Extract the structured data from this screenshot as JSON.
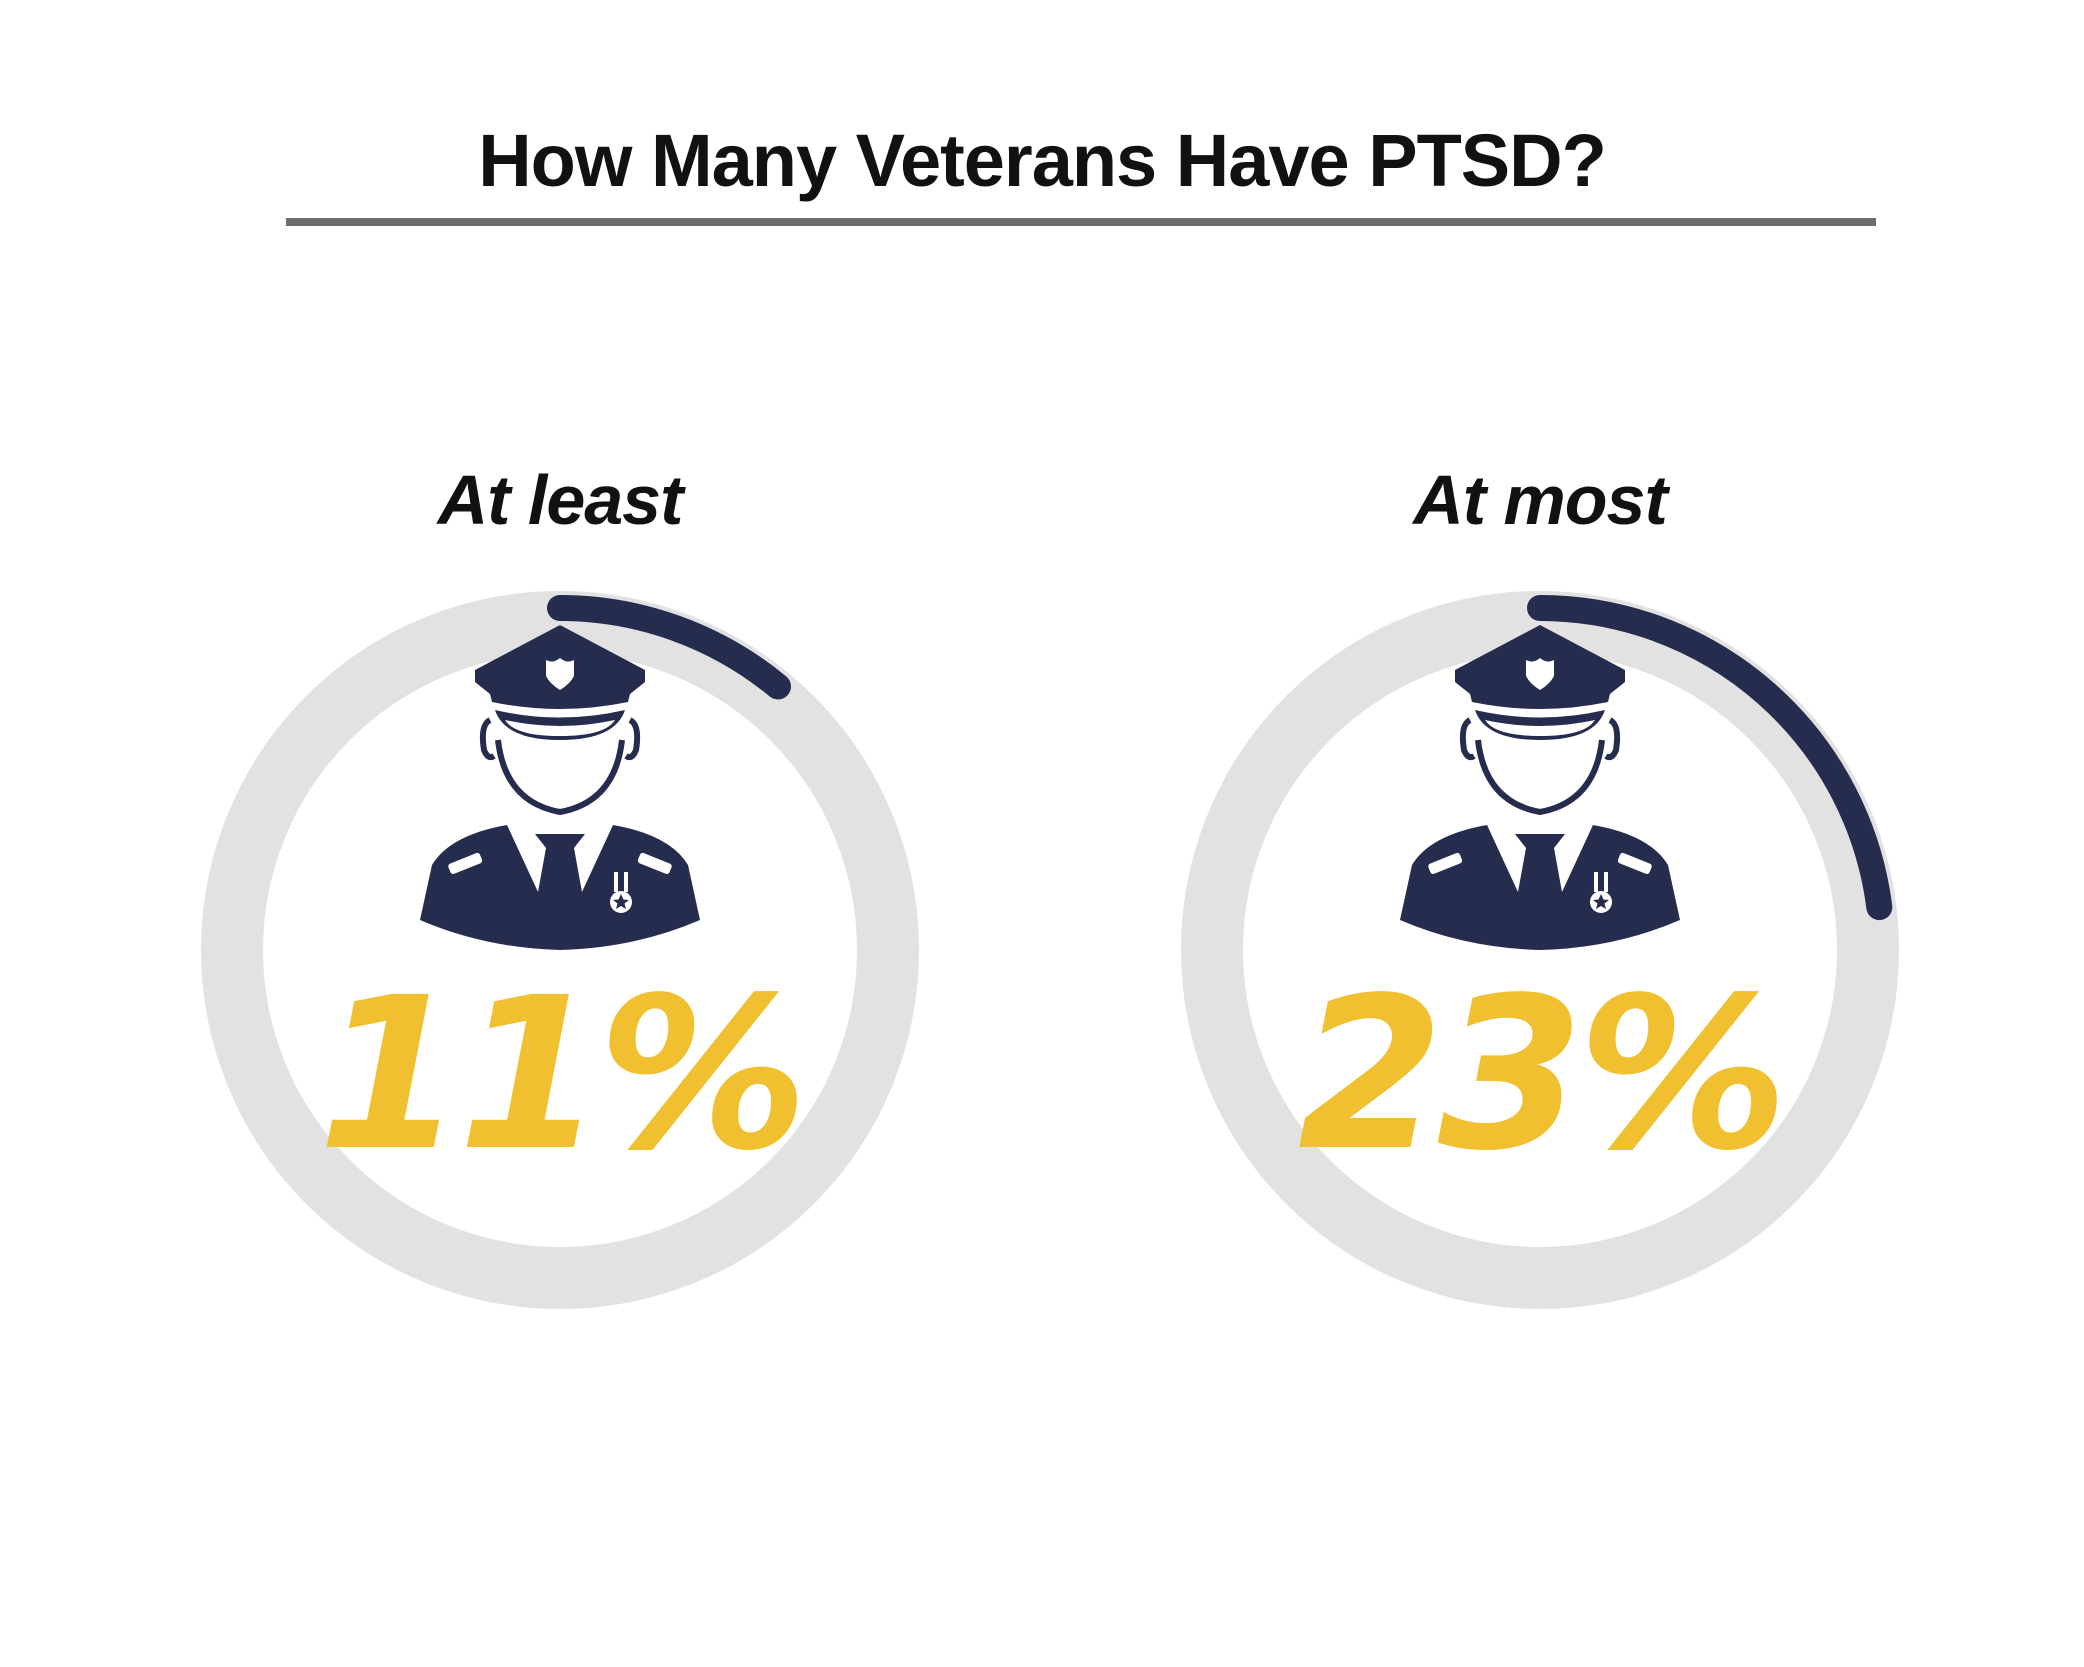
{
  "title": "How Many Veterans Have PTSD?",
  "colors": {
    "track": "#e2e2e2",
    "progress": "#262c4e",
    "value_text": "#f0c030",
    "rule": "#6d6d6d",
    "text": "#111111"
  },
  "chart_data": {
    "type": "pie",
    "subtype": "radial-progress",
    "items": [
      {
        "label": "At least",
        "value": 11,
        "display": "11%",
        "icon": "soldier-icon"
      },
      {
        "label": "At most",
        "value": 23,
        "display": "23%",
        "icon": "soldier-icon"
      }
    ],
    "max": 100
  }
}
